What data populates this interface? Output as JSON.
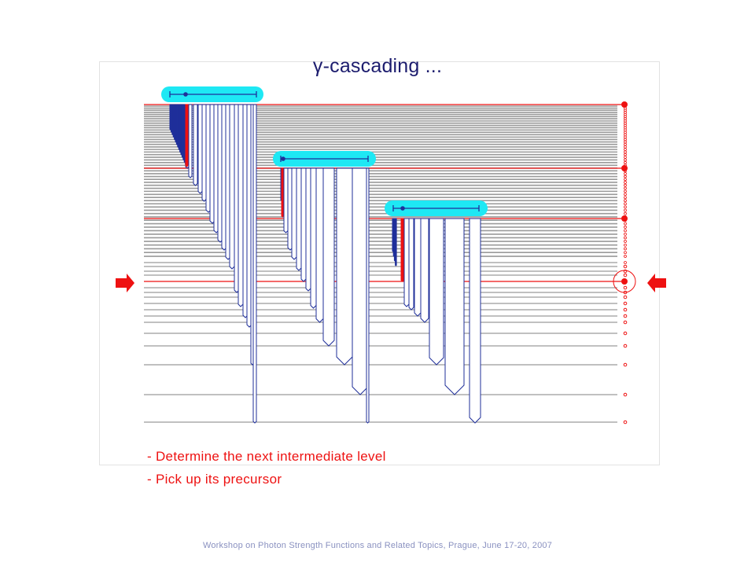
{
  "slide": {
    "title": "γ-cascading ...",
    "bullets": [
      "- Determine the next intermediate level",
      "- Pick up its precursor"
    ],
    "footer": "Workshop on Photon Strength Functions and Related Topics, Prague, June 17-20, 2007"
  },
  "colors": {
    "accent": "#ee1111",
    "navy": "#1f2f9a",
    "cyan": "#1ee8f4",
    "level_line": "#9a9a9a",
    "title": "#1c1c6e",
    "footer": "#8a91c0"
  },
  "icons": {
    "left_marker": "arrow-right-icon",
    "right_marker": "arrow-left-icon",
    "interval_bar": "interval-bar-icon"
  }
}
